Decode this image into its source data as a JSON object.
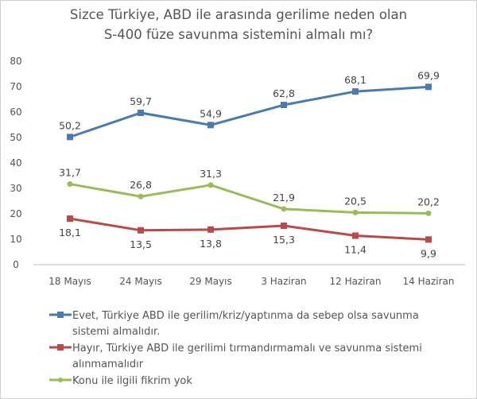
{
  "chart_data": {
    "type": "line",
    "title": [
      "Sizce Türkiye, ABD ile arasında gerilime neden olan",
      "S-400 füze savunma sistemini almalı mı?"
    ],
    "categories": [
      "18 Mayıs",
      "24 Mayıs",
      "29 Mayıs",
      "3 Haziran",
      "12 Haziran",
      "14 Haziran"
    ],
    "ylim": [
      0,
      80
    ],
    "yticks": [
      0,
      10,
      20,
      30,
      40,
      50,
      60,
      70,
      80
    ],
    "grid": false,
    "legend_position": "bottom",
    "series": [
      {
        "name": "Evet, Türkiye ABD ile gerilim/kriz/yaptınma da sebep olsa savunma sistemi almalıdır.",
        "legend_lines": [
          "Evet, Türkiye ABD ile gerilim/kriz/yaptınma da sebep olsa savunma",
          "sistemi almalıdır."
        ],
        "color": "#4a7ab0",
        "marker": "square",
        "values": [
          50.2,
          59.7,
          54.9,
          62.8,
          68.1,
          69.9
        ],
        "labels": [
          "50,2",
          "59,7",
          "54,9",
          "62,8",
          "68,1",
          "69,9"
        ],
        "label_pos": "above"
      },
      {
        "name": "Hayır, Türkiye ABD ile gerilimi tırmandırmamalı ve savunma sistemi alınmamalıdır",
        "legend_lines": [
          "Hayır, Türkiye ABD ile gerilimi tırmandırmamalı ve savunma sistemi",
          "alınmamalıdır"
        ],
        "color": "#b94a48",
        "marker": "square",
        "values": [
          18.1,
          13.5,
          13.8,
          15.3,
          11.4,
          9.9
        ],
        "labels": [
          "18,1",
          "13,5",
          "13,8",
          "15,3",
          "11,4",
          "9,9"
        ],
        "label_pos": "below"
      },
      {
        "name": "Konu ile ilgili fikrim yok",
        "legend_lines": [
          "Konu ile ilgili fikrim yok"
        ],
        "color": "#9bbb59",
        "marker": "circle",
        "values": [
          31.7,
          26.8,
          31.3,
          21.9,
          20.5,
          20.2
        ],
        "labels": [
          "31,7",
          "26,8",
          "31,3",
          "21,9",
          "20,5",
          "20,2"
        ],
        "label_pos": "above"
      }
    ]
  }
}
